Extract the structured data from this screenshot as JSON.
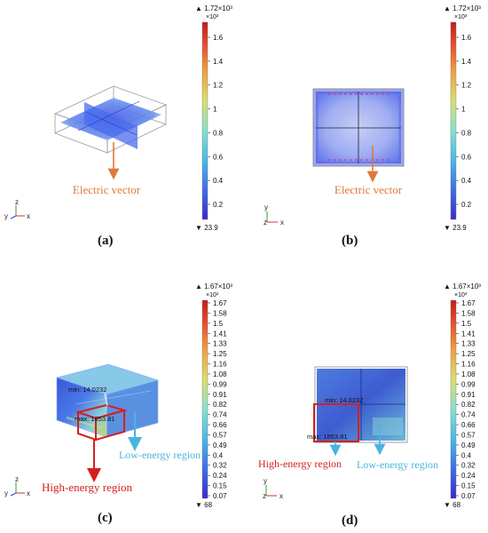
{
  "panels": {
    "a": {
      "label": "(a)",
      "annotation": "Electric vector",
      "colorbar": {
        "max_label": "▲ 1.72×10³",
        "exp_label": "×10³",
        "min_label": "▼ 23.9",
        "ticks": [
          "1.6",
          "1.4",
          "1.2",
          "1",
          "0.8",
          "0.6",
          "0.4",
          "0.2"
        ]
      },
      "axes": {
        "v": "z",
        "h": "x",
        "d": "y"
      }
    },
    "b": {
      "label": "(b)",
      "annotation": "Electric vector",
      "colorbar": {
        "max_label": "▲ 1.72×10³",
        "exp_label": "×10³",
        "min_label": "▼ 23.9",
        "ticks": [
          "1.6",
          "1.4",
          "1.2",
          "1",
          "0.8",
          "0.6",
          "0.4",
          "0.2"
        ]
      },
      "axes": {
        "v": "y",
        "h": "x",
        "d": "z"
      }
    },
    "c": {
      "label": "(c)",
      "high_label": "High-energy region",
      "low_label": "Low-energy region",
      "min_text": "min: 14.0232",
      "max_text": "max: 1853.81",
      "colorbar": {
        "max_label": "▲ 1.67×10³",
        "exp_label": "×10³",
        "min_label": "▼ 68",
        "ticks": [
          "1.67",
          "1.58",
          "1.5",
          "1.41",
          "1.33",
          "1.25",
          "1.16",
          "1.08",
          "0.99",
          "0.91",
          "0.82",
          "0.74",
          "0.66",
          "0.57",
          "0.49",
          "0.4",
          "0.32",
          "0.24",
          "0.15",
          "0.07"
        ]
      },
      "axes": {
        "v": "z",
        "h": "x",
        "d": "y"
      }
    },
    "d": {
      "label": "(d)",
      "high_label": "High-energy region",
      "low_label": "Low-energy region",
      "min_text": "min: 14.0232",
      "max_text": "max: 1853.81",
      "colorbar": {
        "max_label": "▲ 1.67×10³",
        "exp_label": "×10³",
        "min_label": "▼ 68",
        "ticks": [
          "1.67",
          "1.58",
          "1.5",
          "1.41",
          "1.33",
          "1.25",
          "1.16",
          "1.08",
          "0.99",
          "0.91",
          "0.82",
          "0.74",
          "0.66",
          "0.57",
          "0.49",
          "0.4",
          "0.32",
          "0.24",
          "0.15",
          "0.07"
        ]
      },
      "axes": {
        "v": "y",
        "h": "x",
        "d": "z"
      }
    }
  },
  "colors": {
    "annotation_orange": "#e07a3a",
    "high_red": "#d42020",
    "low_blue": "#4ab4e0"
  }
}
